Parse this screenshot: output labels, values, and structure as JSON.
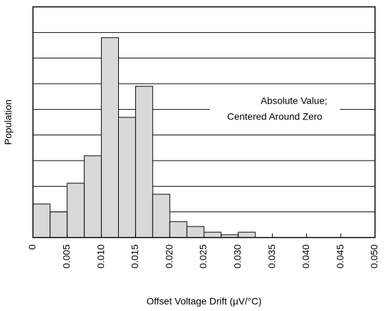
{
  "chart_data": {
    "type": "histogram",
    "xlabel": "Offset Voltage Drift (µV/°C)",
    "ylabel": "Population",
    "annotation": [
      "Absolute Value;",
      "Centered Around Zero"
    ],
    "bins": [
      0,
      0.0025,
      0.005,
      0.0075,
      0.01,
      0.0125,
      0.015,
      0.0175,
      0.02,
      0.0225,
      0.025,
      0.0275,
      0.03,
      0.0325
    ],
    "values": [
      1.31,
      1.0,
      2.12,
      3.19,
      7.8,
      4.69,
      5.9,
      1.69,
      0.62,
      0.43,
      0.21,
      0.11,
      0.21
    ],
    "color": "#d9d9d9",
    "xlim": [
      0,
      0.05
    ],
    "xticks": [
      0,
      0.005,
      {
        "value": 0.01,
        "label": "0.010"
      },
      0.015,
      {
        "value": 0.02,
        "label": "0.020"
      },
      0.025,
      {
        "value": 0.03,
        "label": "0.030"
      },
      0.035,
      {
        "value": 0.04,
        "label": "0.040"
      },
      0.045,
      {
        "value": 0.05,
        "label": "0.050"
      }
    ],
    "ylim": [
      0,
      9
    ],
    "yticks": [
      1,
      2,
      3,
      4,
      5,
      6,
      7,
      8
    ],
    "ytick_labels": false,
    "grid": true
  }
}
